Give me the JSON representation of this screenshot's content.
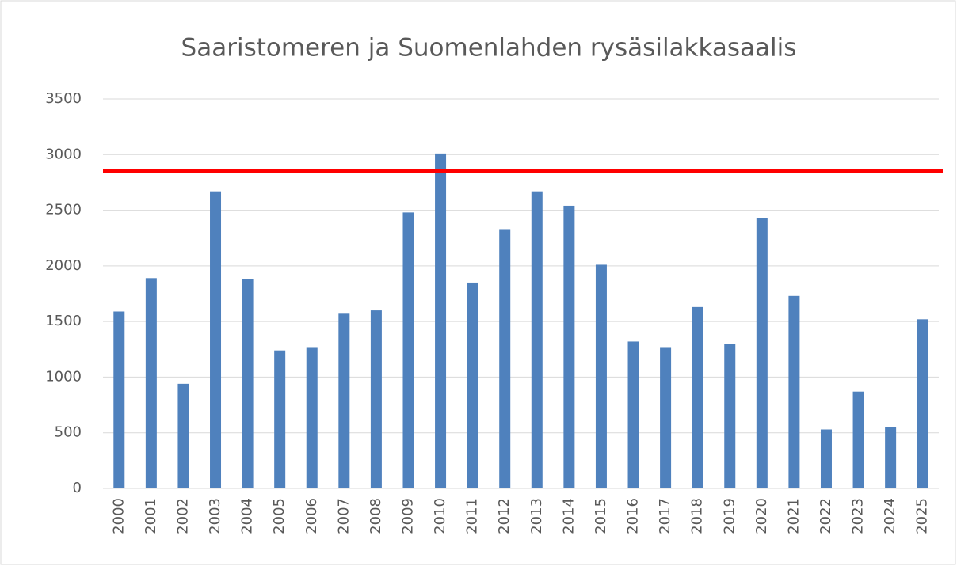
{
  "chart_data": {
    "type": "bar",
    "title": "Saaristomeren ja Suomenlahden rysäsilakkasaalis",
    "categories": [
      "2000",
      "2001",
      "2002",
      "2003",
      "2004",
      "2005",
      "2006",
      "2007",
      "2008",
      "2009",
      "2010",
      "2011",
      "2012",
      "2013",
      "2014",
      "2015",
      "2016",
      "2017",
      "2018",
      "2019",
      "2020",
      "2021",
      "2022",
      "2023",
      "2024",
      "2025"
    ],
    "values": [
      1590,
      1890,
      940,
      2670,
      1880,
      1240,
      1270,
      1570,
      1600,
      2480,
      3010,
      1850,
      2330,
      2670,
      2540,
      2010,
      1320,
      1270,
      1630,
      1300,
      2430,
      1730,
      530,
      870,
      550,
      1520
    ],
    "color": "#4f81bd",
    "ylim": [
      0,
      3500
    ],
    "yticks": [
      0,
      500,
      1000,
      1500,
      2000,
      2500,
      3000,
      3500
    ],
    "grid": true,
    "reference_line": {
      "value": 2850,
      "color": "#ff0000"
    }
  }
}
